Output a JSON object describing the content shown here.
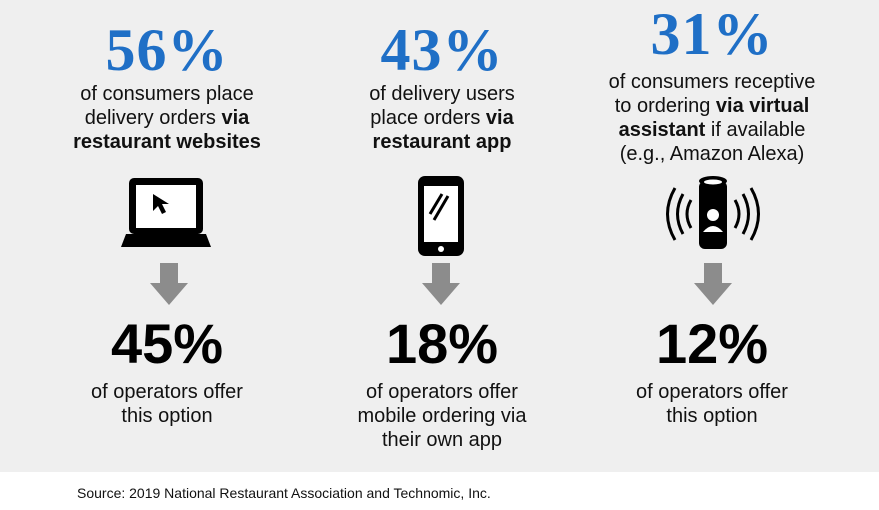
{
  "columns": [
    {
      "consumer_stat": "56%",
      "consumer_lines": [
        {
          "pre": "of consumers place",
          "bold": ""
        },
        {
          "pre": "delivery orders ",
          "bold": "via"
        },
        {
          "pre": "",
          "bold": "restaurant websites"
        }
      ],
      "icon": "laptop-cursor-icon",
      "operator_stat": "45%",
      "operator_lines": [
        "of operators offer",
        "this option"
      ]
    },
    {
      "consumer_stat": "43%",
      "consumer_lines": [
        {
          "pre": "of delivery users",
          "bold": ""
        },
        {
          "pre": "place orders ",
          "bold": "via"
        },
        {
          "pre": "",
          "bold": "restaurant app"
        }
      ],
      "icon": "smartphone-icon",
      "operator_stat": "18%",
      "operator_lines": [
        "of operators offer",
        "mobile ordering via",
        "their own app"
      ]
    },
    {
      "consumer_stat": "31%",
      "consumer_lines": [
        {
          "pre": "of consumers receptive",
          "bold": ""
        },
        {
          "pre": "to ordering ",
          "bold": "via virtual"
        },
        {
          "pre": "",
          "bold": "assistant",
          "post": " if available"
        },
        {
          "pre": "(e.g., Amazon Alexa)",
          "bold": ""
        }
      ],
      "icon": "smart-speaker-icon",
      "operator_stat": "12%",
      "operator_lines": [
        "of operators offer",
        "this option"
      ]
    }
  ],
  "source": "Source: 2019 National Restaurant Association and Technomic, Inc.",
  "colors": {
    "accent": "#1f6fc6",
    "panel": "#efefef",
    "arrow": "#8c8c8c"
  }
}
